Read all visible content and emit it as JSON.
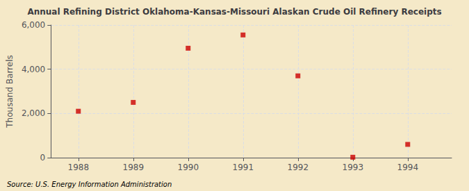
{
  "chart_data": {
    "type": "scatter",
    "title": "Annual Refining District Oklahoma-Kansas-Missouri Alaskan Crude Oil Refinery Receipts",
    "ylabel": "Thousand Barrels",
    "source": "Source: U.S. Energy Information Administration",
    "x": [
      1988,
      1989,
      1990,
      1991,
      1992,
      1993,
      1994
    ],
    "values": [
      2100,
      2500,
      4950,
      5550,
      3700,
      20,
      600
    ],
    "xlim": [
      1987.5,
      1994.8
    ],
    "xticks": [
      1988,
      1989,
      1990,
      1991,
      1992,
      1993,
      1994
    ],
    "ylim": [
      0,
      6000
    ],
    "yticks": [
      0,
      {
        "value": 2000,
        "label": "2,000"
      },
      {
        "value": 4000,
        "label": "4,000"
      },
      {
        "value": 6000,
        "label": "6,000"
      }
    ],
    "color": "#cc0000",
    "marker": "square",
    "grid": true
  }
}
